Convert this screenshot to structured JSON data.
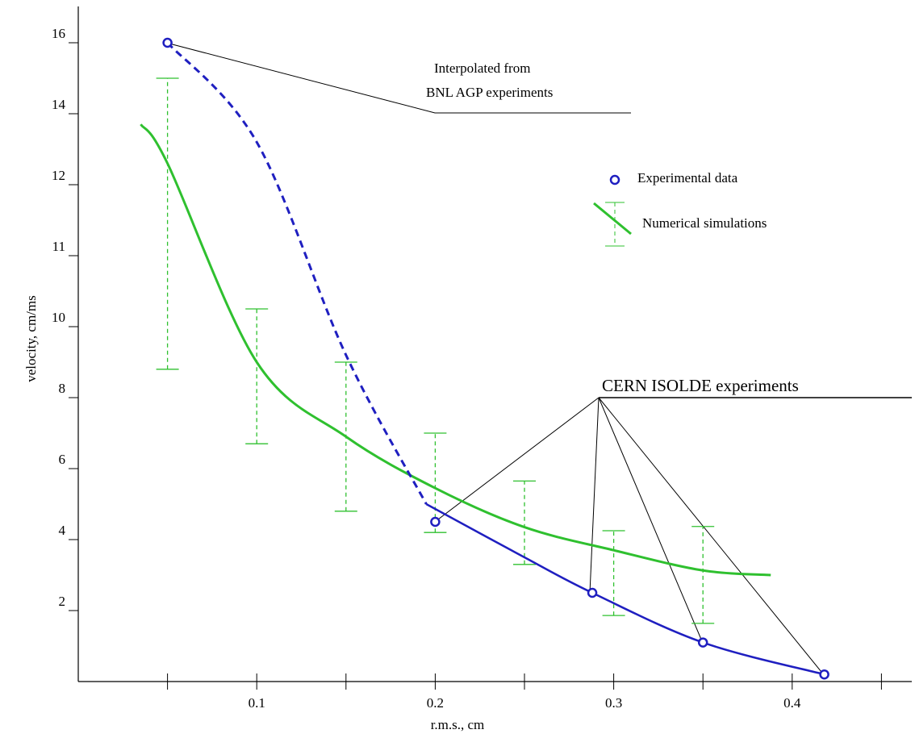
{
  "chart_data": {
    "type": "scatter",
    "xlabel": "r.m.s., cm",
    "ylabel": "velocity, cm/ms",
    "xlim": [
      0,
      0.467
    ],
    "ylim": [
      0,
      17
    ],
    "xticks": [
      0.1,
      0.2,
      0.3,
      0.4
    ],
    "xminor": [
      0.05,
      0.15,
      0.25,
      0.35,
      0.45
    ],
    "yticks": [
      2,
      4,
      6,
      8,
      10,
      11,
      12,
      14,
      16
    ],
    "series": [
      {
        "name": "Experimental data",
        "color": "#1f1fc0",
        "x": [
          0.05,
          0.2,
          0.288,
          0.35,
          0.418
        ],
        "values": [
          16,
          4.5,
          2.5,
          1.1,
          0.2
        ]
      },
      {
        "name": "Numerical simulations",
        "color": "#2fc02f",
        "x": [
          0.035,
          0.05,
          0.1,
          0.15,
          0.2,
          0.25,
          0.3,
          0.35,
          0.388
        ],
        "values": [
          13.7,
          12.6,
          9.0,
          6.9,
          5.45,
          4.35,
          3.7,
          3.13,
          3.0
        ],
        "error_x": [
          0.05,
          0.1,
          0.15,
          0.2,
          0.25,
          0.3,
          0.35
        ],
        "error_low": [
          8.8,
          6.7,
          4.8,
          4.2,
          3.3,
          1.86,
          1.64
        ],
        "error_high": [
          15.0,
          10.25,
          9.0,
          7.0,
          5.65,
          4.25,
          4.37
        ]
      }
    ],
    "fit_dashed": {
      "x": [
        0.05,
        0.1,
        0.15,
        0.195
      ],
      "values": [
        16,
        13.2,
        9.2,
        5.0
      ]
    },
    "fit_solid": {
      "x": [
        0.195,
        0.25,
        0.288,
        0.35,
        0.418
      ],
      "values": [
        5.0,
        3.5,
        2.5,
        1.1,
        0.2
      ]
    },
    "annotations": [
      "Interpolated from",
      "BNL AGP experiments",
      "CERN ISOLDE experiments"
    ]
  }
}
